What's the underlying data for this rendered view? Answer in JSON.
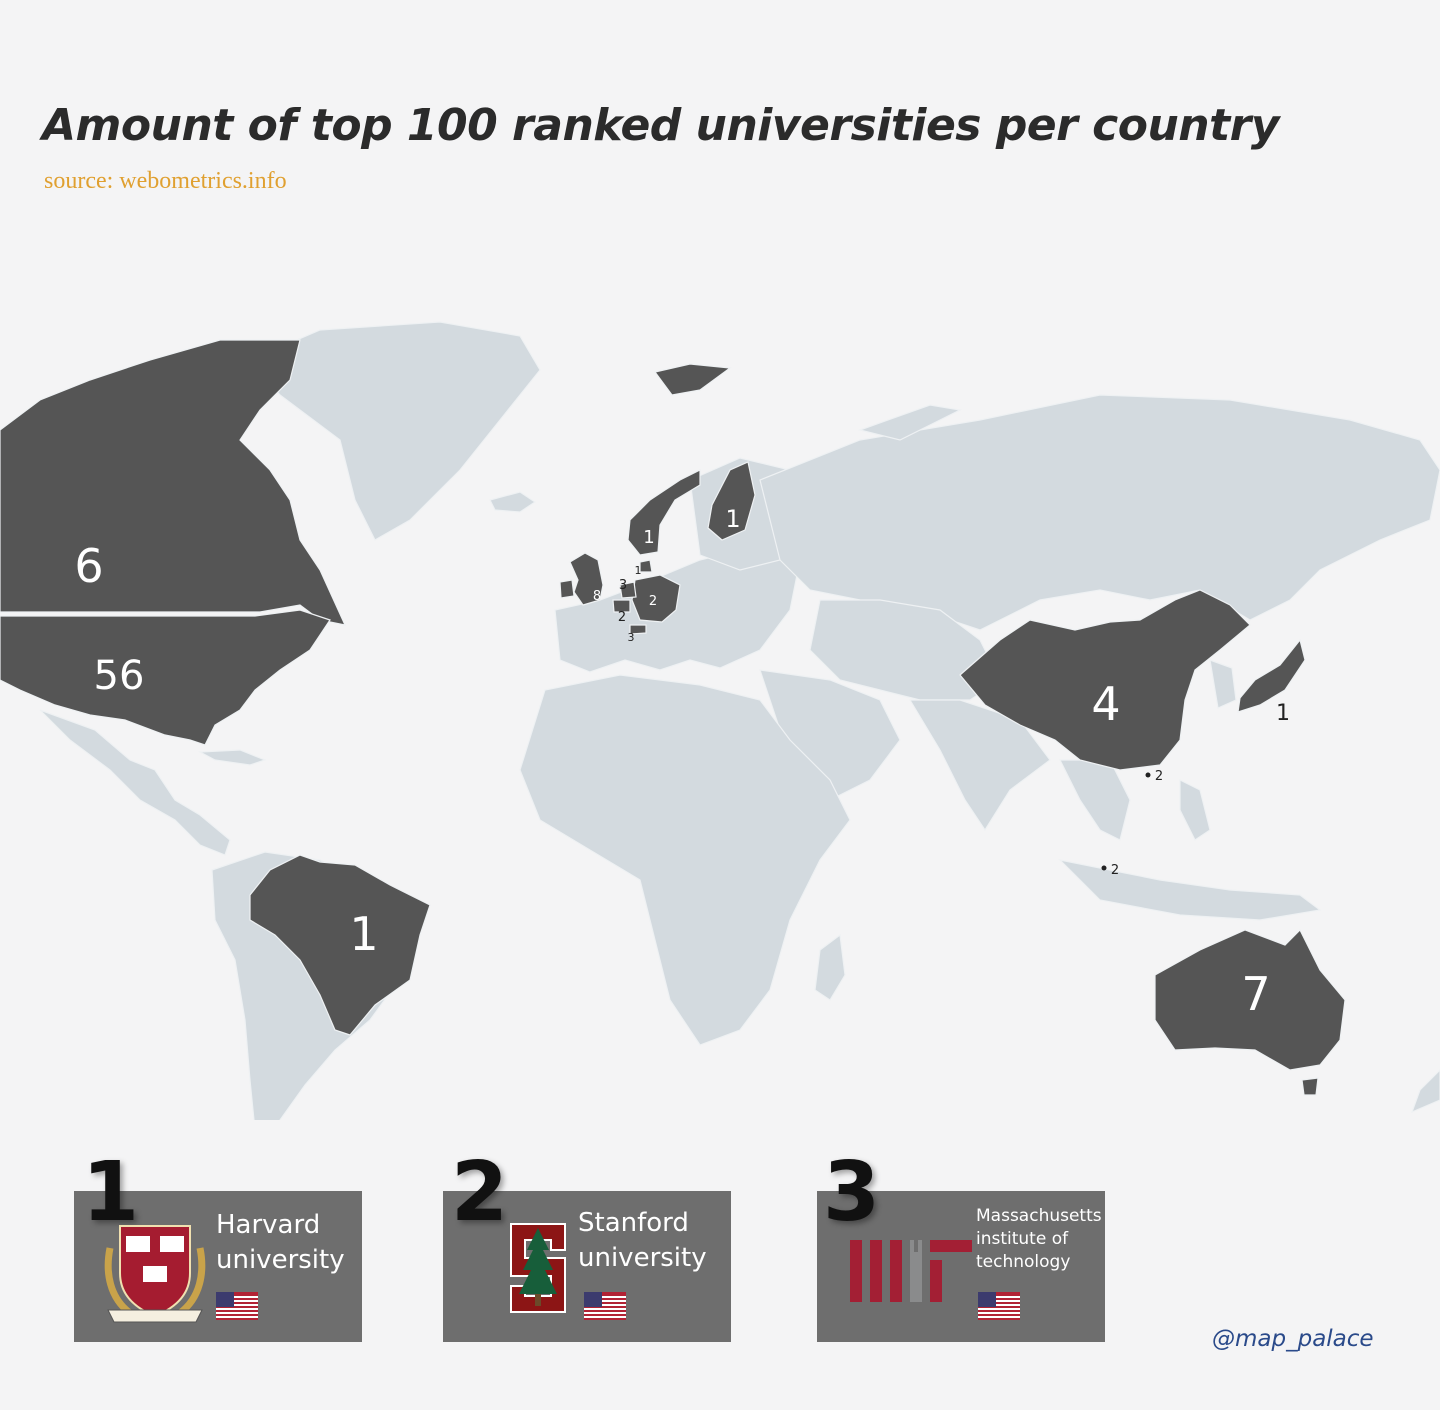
{
  "title": "Amount of top 100 ranked universities per country",
  "source": "source: webometrics.info",
  "credit": "@map_palace",
  "colors": {
    "highlight": "#555555",
    "land": "#d3dadf",
    "background": "#f4f4f5",
    "source_text": "#e0a030",
    "card": "#6e6e6e"
  },
  "map": {
    "countries": [
      {
        "name": "United States",
        "count": 56
      },
      {
        "name": "Australia",
        "count": 7
      },
      {
        "name": "Canada",
        "count": 6
      },
      {
        "name": "China",
        "count": 4
      },
      {
        "name": "United Kingdom",
        "count": 8
      },
      {
        "name": "Netherlands",
        "count": 3
      },
      {
        "name": "Switzerland",
        "count": 3
      },
      {
        "name": "Germany",
        "count": 2
      },
      {
        "name": "Belgium",
        "count": 2
      },
      {
        "name": "Hong Kong",
        "count": 2
      },
      {
        "name": "Singapore",
        "count": 2
      },
      {
        "name": "Brazil",
        "count": 1
      },
      {
        "name": "Japan",
        "count": 1
      },
      {
        "name": "Norway",
        "count": 1
      },
      {
        "name": "Finland",
        "count": 1
      },
      {
        "name": "Denmark",
        "count": 1
      }
    ]
  },
  "top3": [
    {
      "rank": "1",
      "name": "Harvard\nuniversity",
      "logo": "harvard-shield-icon",
      "flag": "us-flag-icon"
    },
    {
      "rank": "2",
      "name": "Stanford\nuniversity",
      "logo": "stanford-tree-icon",
      "flag": "us-flag-icon"
    },
    {
      "rank": "3",
      "name": "Massachusetts\ninstitute of\ntechnology",
      "logo": "mit-logo-icon",
      "flag": "us-flag-icon"
    }
  ]
}
